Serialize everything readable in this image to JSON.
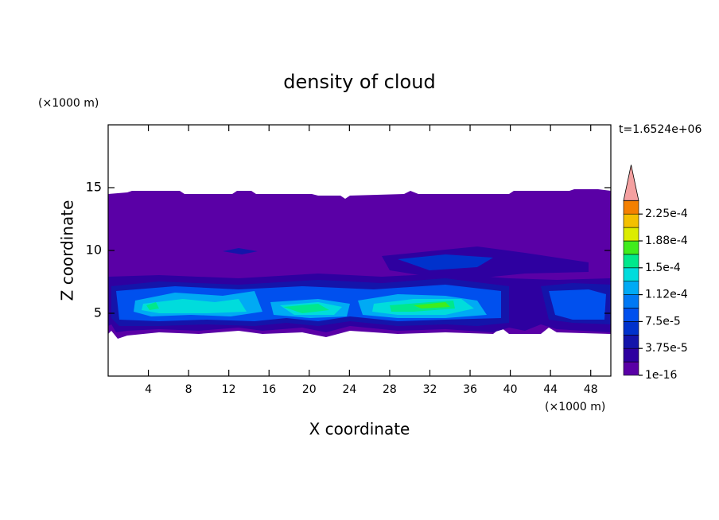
{
  "chart_data": {
    "type": "contour",
    "title": "density of cloud",
    "xlabel": "X coordinate",
    "ylabel": "Z coordinate",
    "x_unit": "(×1000 m)",
    "y_unit": "(×1000 m)",
    "annotation": "t=1.6524e+06",
    "xlim": [
      0,
      50
    ],
    "xticks": [
      4,
      8,
      12,
      16,
      20,
      24,
      28,
      32,
      36,
      40,
      44,
      48
    ],
    "ylim": [
      0,
      20
    ],
    "yticks": [
      5,
      10,
      15
    ],
    "levels": [
      1e-16,
      1.875e-05,
      3.75e-05,
      5.625e-05,
      7.5e-05,
      9.375e-05,
      0.0001125,
      0.00013125,
      0.00015,
      0.00016875,
      0.0001875,
      0.00020625,
      0.000225,
      0.00024375
    ],
    "colors": [
      "#5a00a6",
      "#2e00a0",
      "#1414aa",
      "#0032cc",
      "#0050ee",
      "#0078f4",
      "#00aaf4",
      "#00dcdc",
      "#00e88c",
      "#40ec1c",
      "#dcec00",
      "#f4c000",
      "#f48000"
    ],
    "extend_color": "#f4a0a0",
    "cbar_ticks": [
      {
        "value": 1e-16,
        "label": "1e-16"
      },
      {
        "value": 3.75e-05,
        "label": "3.75e-5"
      },
      {
        "value": 7.5e-05,
        "label": "7.5e-5"
      },
      {
        "value": 0.0001125,
        "label": "1.12e-4"
      },
      {
        "value": 0.00015,
        "label": "1.5e-4"
      },
      {
        "value": 0.0001875,
        "label": "1.88e-4"
      },
      {
        "value": 0.000225,
        "label": "2.25e-4"
      }
    ]
  }
}
